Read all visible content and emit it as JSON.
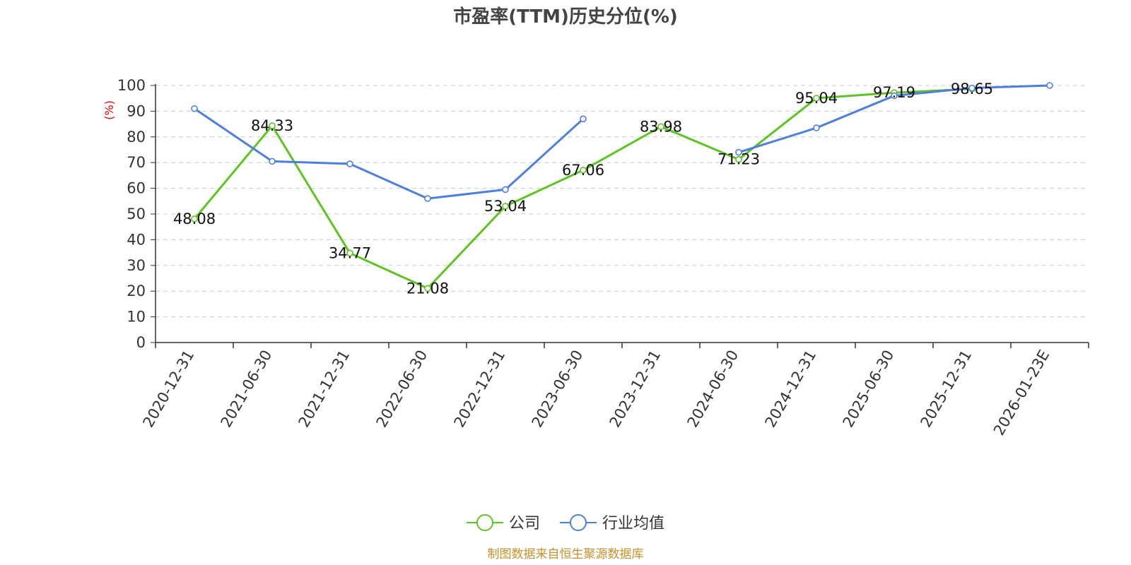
{
  "chart_data": {
    "type": "line",
    "title": "市盈率(TTM)历史分位(%)",
    "ylabel": "(%)",
    "xlabel": "",
    "ylim": [
      0,
      100
    ],
    "yticks": [
      "0",
      "10",
      "20",
      "30",
      "40",
      "50",
      "60",
      "70",
      "80",
      "90",
      "100"
    ],
    "categories": [
      "2020-12-31",
      "2021-06-30",
      "2021-12-31",
      "2022-06-30",
      "2022-12-31",
      "2023-06-30",
      "2023-12-31",
      "2024-06-30",
      "2024-12-31",
      "2025-06-30",
      "2025-12-31",
      "2026-01-23E"
    ],
    "grid": "horizontal-dashed",
    "legend_position": "bottom-center",
    "series": [
      {
        "name": "公司",
        "color": "#5ec424",
        "values": [
          48.08,
          84.33,
          34.77,
          21.08,
          53.04,
          67.06,
          83.98,
          71.23,
          95.04,
          97.19,
          98.65,
          null
        ],
        "labels": [
          "48.08",
          "84.33",
          "34.77",
          "21.08",
          "53.04",
          "67.06",
          "83.98",
          "71.23",
          "95.04",
          "97.19",
          "98.65",
          ""
        ]
      },
      {
        "name": "行业均值",
        "color": "#4f7fdc",
        "values": [
          91,
          70.5,
          69.5,
          56,
          59.5,
          87,
          null,
          74,
          83.5,
          96,
          99,
          100
        ]
      }
    ]
  },
  "footer": {
    "source": "制图数据来自恒生聚源数据库"
  }
}
